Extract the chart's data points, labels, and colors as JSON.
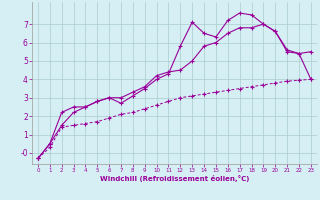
{
  "xlabel": "Windchill (Refroidissement éolien,°C)",
  "background_color": "#d6eff5",
  "line_color": "#990099",
  "grid_color": "#aacccc",
  "xlim": [
    -0.5,
    23.5
  ],
  "ylim": [
    -0.6,
    8.2
  ],
  "yticks": [
    0,
    1,
    2,
    3,
    4,
    5,
    6,
    7
  ],
  "xticks": [
    0,
    1,
    2,
    3,
    4,
    5,
    6,
    7,
    8,
    9,
    10,
    11,
    12,
    13,
    14,
    15,
    16,
    17,
    18,
    19,
    20,
    21,
    22,
    23
  ],
  "series1_x": [
    0,
    1,
    2,
    3,
    4,
    5,
    6,
    7,
    8,
    9,
    10,
    11,
    12,
    13,
    14,
    15,
    16,
    17,
    18,
    19,
    20,
    21,
    22,
    23
  ],
  "series1_y": [
    -0.3,
    0.5,
    1.5,
    2.2,
    2.5,
    2.8,
    3.0,
    2.7,
    3.1,
    3.5,
    4.0,
    4.3,
    5.8,
    7.1,
    6.5,
    6.3,
    7.2,
    7.6,
    7.5,
    7.0,
    6.6,
    5.5,
    5.4,
    5.5
  ],
  "series2_x": [
    0,
    1,
    2,
    3,
    4,
    5,
    6,
    7,
    8,
    9,
    10,
    11,
    12,
    13,
    14,
    15,
    16,
    17,
    18,
    19,
    20,
    21,
    22,
    23
  ],
  "series2_y": [
    -0.3,
    0.5,
    2.2,
    2.5,
    2.5,
    2.8,
    3.0,
    3.0,
    3.3,
    3.6,
    4.2,
    4.4,
    4.5,
    5.0,
    5.8,
    6.0,
    6.5,
    6.8,
    6.8,
    7.0,
    6.6,
    5.6,
    5.4,
    4.0
  ],
  "series3_x": [
    0,
    1,
    2,
    3,
    4,
    5,
    6,
    7,
    8,
    9,
    10,
    11,
    12,
    13,
    14,
    15,
    16,
    17,
    18,
    19,
    20,
    21,
    22,
    23
  ],
  "series3_y": [
    -0.3,
    0.3,
    1.4,
    1.5,
    1.6,
    1.7,
    1.9,
    2.1,
    2.2,
    2.4,
    2.6,
    2.8,
    3.0,
    3.1,
    3.2,
    3.3,
    3.4,
    3.5,
    3.6,
    3.7,
    3.8,
    3.9,
    3.95,
    4.0
  ]
}
